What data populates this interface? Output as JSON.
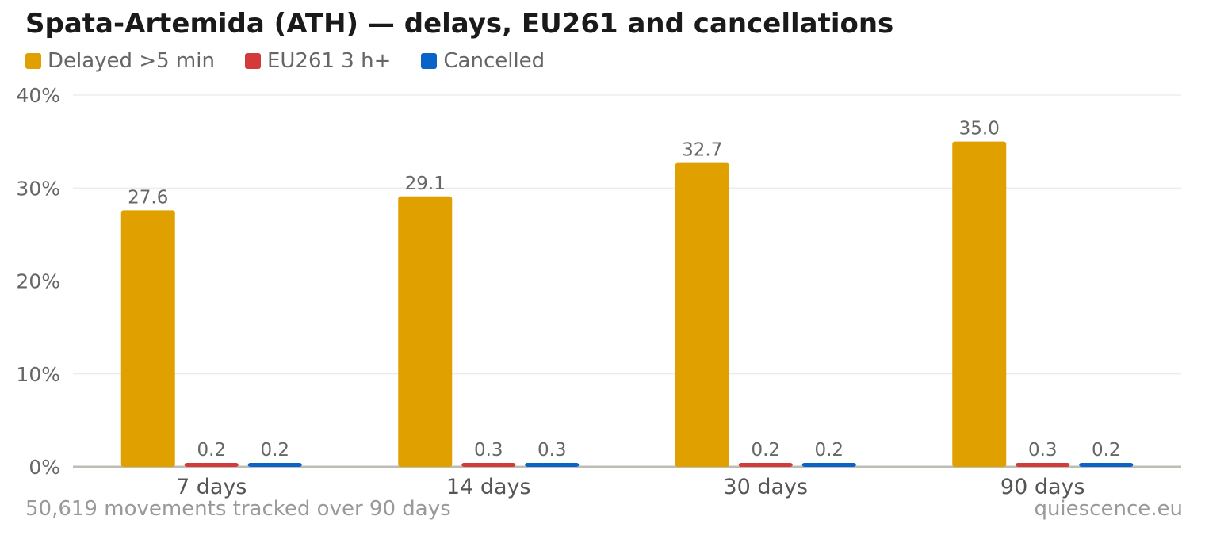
{
  "title": "Spata-Artemida (ATH) — delays, EU261 and cancellations",
  "footnote": "50,619 movements tracked over 90 days",
  "source": "quiescence.eu",
  "chart_data": {
    "type": "bar",
    "title": "Spata-Artemida (ATH) — delays, EU261 and cancellations",
    "categories": [
      "7 days",
      "14 days",
      "30 days",
      "90 days"
    ],
    "series": [
      {
        "name": "Delayed >5 min",
        "color": "#E0A000",
        "values": [
          27.6,
          29.1,
          32.7,
          35.0
        ],
        "labels": [
          "27.6",
          "29.1",
          "32.7",
          "35.0"
        ]
      },
      {
        "name": "EU261 3 h+",
        "color": "#D33A3A",
        "values": [
          0.2,
          0.3,
          0.2,
          0.3
        ],
        "labels": [
          "0.2",
          "0.3",
          "0.2",
          "0.3"
        ]
      },
      {
        "name": "Cancelled",
        "color": "#0A64C8",
        "values": [
          0.2,
          0.3,
          0.2,
          0.2
        ],
        "labels": [
          "0.2",
          "0.3",
          "0.2",
          "0.2"
        ]
      }
    ],
    "ylim": [
      0,
      40
    ],
    "yticks": [
      "0%",
      "10%",
      "20%",
      "30%",
      "40%"
    ],
    "ytick_values": [
      0,
      10,
      20,
      30,
      40
    ],
    "grid": true,
    "legend_position": "top-left"
  }
}
